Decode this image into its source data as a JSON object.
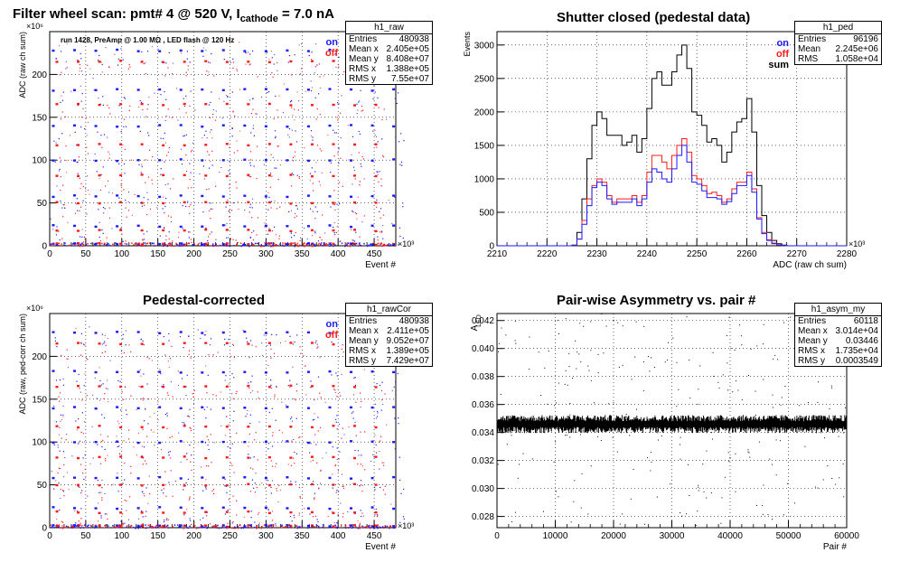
{
  "title_main": {
    "prefix": "Filter wheel scan: pmt#   4 @   520 V, I",
    "sub": "cathode",
    "suffix": " = 7.0 nA"
  },
  "panels": [
    {
      "title": "",
      "stats": {
        "name": "h1_raw",
        "rows": [
          [
            "Entries",
            "480938"
          ],
          [
            "Mean x",
            "2.405e+05"
          ],
          [
            "Mean y",
            "8.408e+07"
          ],
          [
            "RMS x",
            "1.388e+05"
          ],
          [
            "RMS y",
            "7.55e+07"
          ]
        ]
      },
      "legend": [
        {
          "label": "on",
          "color": "#1a1aff"
        },
        {
          "label": "off",
          "color": "#ff1a1a"
        }
      ],
      "note": "run 1428, PreAmp @ 1.00 MΩ , LED flash @  120 Hz"
    },
    {
      "title": "Shutter closed (pedestal data)",
      "stats": {
        "name": "h1_ped",
        "rows": [
          [
            "Entries",
            "96196"
          ],
          [
            "Mean",
            "2.245e+06"
          ],
          [
            "RMS",
            "1.058e+04"
          ]
        ]
      },
      "legend": [
        {
          "label": "on",
          "color": "#1a1aff"
        },
        {
          "label": "off",
          "color": "#ff1a1a"
        },
        {
          "label": "sum",
          "color": "#000000"
        }
      ]
    },
    {
      "title": "Pedestal-corrected",
      "stats": {
        "name": "h1_rawCor",
        "rows": [
          [
            "Entries",
            "480938"
          ],
          [
            "Mean x",
            "2.411e+05"
          ],
          [
            "Mean y",
            "9.052e+07"
          ],
          [
            "RMS x",
            "1.389e+05"
          ],
          [
            "RMS y",
            "7.429e+07"
          ]
        ]
      },
      "legend": [
        {
          "label": "on",
          "color": "#1a1aff"
        },
        {
          "label": "off",
          "color": "#ff1a1a"
        }
      ]
    },
    {
      "title": "Pair-wise Asymmetry vs. pair #",
      "stats": {
        "name": "h1_asym_my",
        "rows": [
          [
            "Entries",
            "60118"
          ],
          [
            "Mean x",
            "3.014e+04"
          ],
          [
            "Mean y",
            "0.03446"
          ],
          [
            "RMS x",
            "1.735e+04"
          ],
          [
            "RMS y",
            "0.0003549"
          ]
        ]
      }
    }
  ],
  "chart_data": [
    {
      "type": "scatter",
      "title": "",
      "xlabel": "Event #",
      "ylabel": "ADC (raw ch sum)",
      "x_exponent": "×10³",
      "y_exponent": "×10⁶",
      "xlim": [
        0,
        480
      ],
      "ylim": [
        0,
        250
      ],
      "xticks": [
        0,
        50,
        100,
        150,
        200,
        250,
        300,
        350,
        400,
        450
      ],
      "yticks": [
        0,
        50,
        100,
        150,
        200
      ],
      "grid": true,
      "series": [
        {
          "name": "on",
          "color": "#1a1aff",
          "y_levels": [
            2,
            23,
            58,
            100,
            140,
            182,
            228
          ],
          "x_period": 29.5
        },
        {
          "name": "off",
          "color": "#ff1a1a",
          "y_levels": [
            2,
            18,
            50,
            82,
            118,
            165,
            215
          ],
          "x_period": 29.5
        }
      ]
    },
    {
      "type": "line",
      "title": "Shutter closed (pedestal data)",
      "xlabel": "ADC (raw ch sum)",
      "ylabel": "Events",
      "x_exponent": "×10³",
      "xlim": [
        2210,
        2280
      ],
      "ylim": [
        0,
        3200
      ],
      "xticks": [
        2210,
        2220,
        2230,
        2240,
        2250,
        2260,
        2270,
        2280
      ],
      "yticks": [
        0,
        500,
        1000,
        1500,
        2000,
        2500,
        3000
      ],
      "grid": true,
      "x": [
        2225,
        2226,
        2227,
        2228,
        2229,
        2230,
        2231,
        2232,
        2233,
        2234,
        2235,
        2236,
        2237,
        2238,
        2239,
        2240,
        2241,
        2242,
        2243,
        2244,
        2245,
        2246,
        2247,
        2248,
        2249,
        2250,
        2251,
        2252,
        2253,
        2254,
        2255,
        2256,
        2257,
        2258,
        2259,
        2260,
        2261,
        2262,
        2263,
        2264,
        2265,
        2266,
        2267,
        2268,
        2269,
        2270
      ],
      "series": [
        {
          "name": "sum",
          "color": "#000000",
          "values": [
            10,
            200,
            700,
            1300,
            1800,
            2000,
            1900,
            1650,
            1650,
            1650,
            1500,
            1550,
            1650,
            1400,
            1600,
            2050,
            2500,
            2600,
            2400,
            2400,
            2600,
            2850,
            3000,
            2650,
            2000,
            1950,
            1800,
            1550,
            1600,
            1500,
            1250,
            1400,
            1700,
            1850,
            1900,
            2200,
            1700,
            900,
            450,
            200,
            80,
            30,
            10,
            0,
            0,
            0
          ]
        },
        {
          "name": "off",
          "color": "#ff1a1a",
          "values": [
            5,
            100,
            380,
            700,
            900,
            1000,
            950,
            750,
            650,
            700,
            700,
            700,
            750,
            650,
            750,
            1100,
            1350,
            1350,
            1250,
            1150,
            1350,
            1500,
            1600,
            1400,
            1050,
            1000,
            900,
            780,
            800,
            750,
            650,
            700,
            850,
            950,
            950,
            1100,
            850,
            420,
            200,
            90,
            40,
            10,
            5,
            0,
            0,
            0
          ]
        },
        {
          "name": "on",
          "color": "#1a1aff",
          "values": [
            5,
            100,
            320,
            600,
            870,
            950,
            900,
            700,
            620,
            650,
            650,
            650,
            700,
            600,
            700,
            950,
            1150,
            1100,
            1000,
            950,
            1150,
            1350,
            1500,
            1250,
            950,
            920,
            820,
            720,
            720,
            700,
            620,
            660,
            780,
            900,
            900,
            1050,
            800,
            400,
            180,
            80,
            30,
            10,
            5,
            0,
            0,
            0
          ]
        }
      ]
    },
    {
      "type": "scatter",
      "title": "Pedestal-corrected",
      "xlabel": "Event #",
      "ylabel": "ADC (raw, ped-corr ch sum)",
      "x_exponent": "×10³",
      "y_exponent": "×10⁶",
      "xlim": [
        0,
        480
      ],
      "ylim": [
        0,
        250
      ],
      "xticks": [
        0,
        50,
        100,
        150,
        200,
        250,
        300,
        350,
        400,
        450
      ],
      "yticks": [
        0,
        50,
        100,
        150,
        200
      ],
      "grid": true,
      "series": [
        {
          "name": "on",
          "color": "#1a1aff",
          "y_levels": [
            2,
            23,
            58,
            100,
            140,
            182,
            228
          ],
          "x_period": 29.5
        },
        {
          "name": "off",
          "color": "#ff1a1a",
          "y_levels": [
            2,
            18,
            50,
            82,
            118,
            165,
            215
          ],
          "x_period": 29.5
        }
      ]
    },
    {
      "type": "scatter",
      "title": "Pair-wise Asymmetry vs. pair #",
      "xlabel": "Pair #",
      "ylabel": "A_LED",
      "xlim": [
        0,
        60000
      ],
      "ylim": [
        0.0272,
        0.0425
      ],
      "xticks": [
        0,
        10000,
        20000,
        30000,
        40000,
        50000,
        60000
      ],
      "yticks": [
        0.028,
        0.03,
        0.032,
        0.034,
        0.036,
        0.038,
        0.04,
        0.042
      ],
      "grid": true,
      "series": [
        {
          "name": "asym",
          "color": "#000000",
          "band_center": 0.0346,
          "band_halfwidth": 0.0005,
          "outlier_range": [
            0.0272,
            0.0425
          ]
        }
      ]
    }
  ]
}
